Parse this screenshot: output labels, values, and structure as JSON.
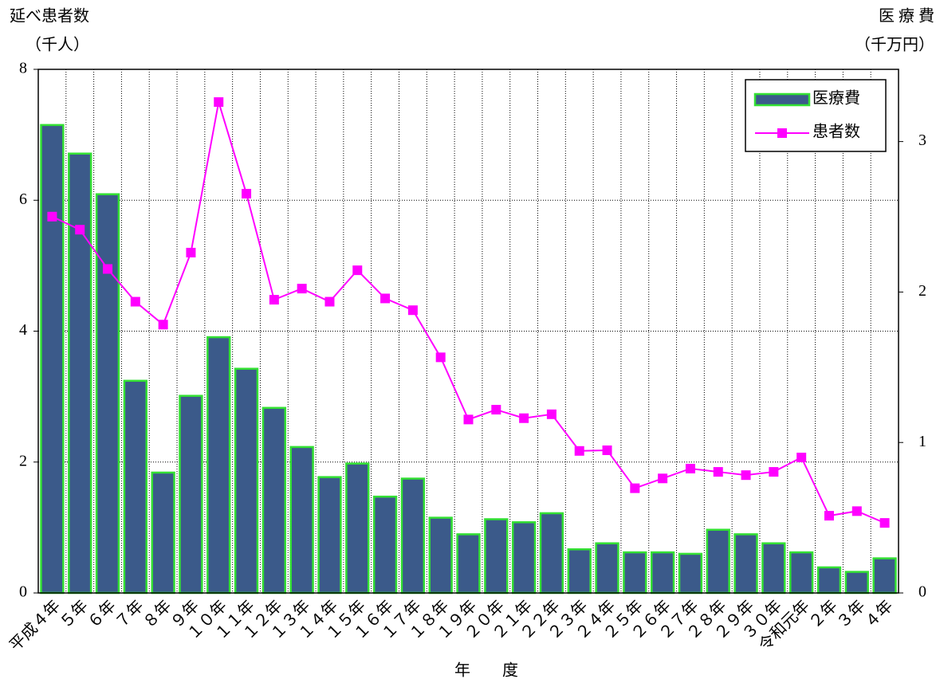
{
  "chart_data": {
    "type": "bar_line",
    "ylabel": "延べ患者数",
    "ylabel_unit": "（千人）",
    "y2label": "医 療 費",
    "y2label_unit": "（千万円）",
    "xlabel": "年　　度",
    "categories": [
      "平成４年",
      "５年",
      "６年",
      "７年",
      "８年",
      "９年",
      "１０年",
      "１１年",
      "１２年",
      "１３年",
      "１４年",
      "１５年",
      "１６年",
      "１７年",
      "１８年",
      "１９年",
      "２０年",
      "２１年",
      "２２年",
      "２３年",
      "２４年",
      "２５年",
      "２６年",
      "２７年",
      "２８年",
      "２９年",
      "３０年",
      "令和元年",
      "２年",
      "３年",
      "４年"
    ],
    "series": [
      {
        "name": "医療費",
        "type": "bar",
        "axis": "y2",
        "color": "#3b5a8a",
        "edge_color": "#33e033",
        "values": [
          3.11,
          2.92,
          2.65,
          1.41,
          0.8,
          1.31,
          1.7,
          1.49,
          1.23,
          0.97,
          0.77,
          0.86,
          0.64,
          0.76,
          0.5,
          0.39,
          0.49,
          0.47,
          0.53,
          0.29,
          0.33,
          0.27,
          0.27,
          0.26,
          0.42,
          0.39,
          0.33,
          0.27,
          0.17,
          0.14,
          0.23
        ]
      },
      {
        "name": "患者数",
        "type": "line",
        "color": "#ff00ff",
        "values": [
          5.75,
          5.55,
          4.95,
          4.45,
          4.1,
          5.2,
          7.5,
          6.1,
          4.48,
          4.65,
          4.45,
          4.93,
          4.5,
          4.32,
          3.6,
          2.65,
          2.8,
          2.67,
          2.73,
          2.17,
          2.18,
          1.6,
          1.75,
          1.9,
          1.85,
          1.8,
          1.85,
          2.07,
          1.18,
          1.25,
          1.07
        ]
      }
    ],
    "ylim": [
      0,
      8
    ],
    "yticks": [
      0,
      2,
      4,
      6,
      8
    ],
    "y2lim": [
      0,
      3.48
    ],
    "y2ticks": [
      0,
      1,
      2,
      3
    ],
    "grid": true,
    "legend": "upper right"
  }
}
